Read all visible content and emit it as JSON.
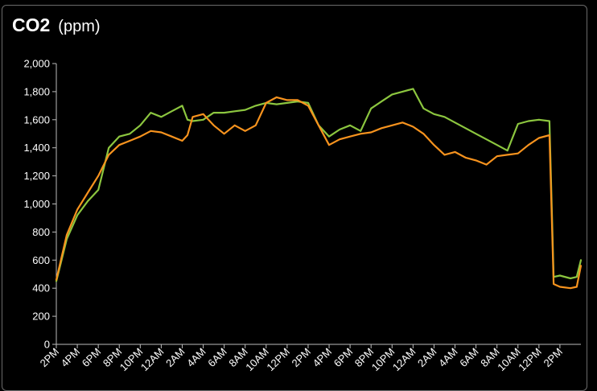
{
  "panel": {
    "title": "CO2",
    "unit": "(ppm)"
  },
  "chart_data": {
    "type": "line",
    "title": "CO2",
    "ylabel": "(ppm)",
    "xlabel": "",
    "ylim": [
      0,
      2000
    ],
    "xlim": [
      0,
      50
    ],
    "grid": false,
    "y_ticks": [
      0,
      200,
      400,
      600,
      800,
      1000,
      1200,
      1400,
      1600,
      1800,
      2000
    ],
    "y_tick_labels": [
      "0",
      "200",
      "400",
      "600",
      "800",
      "1,000",
      "1,200",
      "1,400",
      "1,600",
      "1,800",
      "2,000"
    ],
    "x_ticks": [
      0,
      2,
      4,
      6,
      8,
      10,
      12,
      14,
      16,
      18,
      20,
      22,
      24,
      26,
      28,
      30,
      32,
      34,
      36,
      38,
      40,
      42,
      44,
      46,
      48
    ],
    "x_tick_labels": [
      "2PM",
      "4PM",
      "6PM",
      "8PM",
      "10PM",
      "12AM",
      "2AM",
      "4AM",
      "6AM",
      "8AM",
      "10AM",
      "12PM",
      "2PM",
      "4PM",
      "6PM",
      "8PM",
      "10PM",
      "12AM",
      "2AM",
      "4AM",
      "6AM",
      "8AM",
      "10AM",
      "12PM",
      "2PM"
    ],
    "series": [
      {
        "color": "#8cc63f",
        "points": [
          [
            0,
            450
          ],
          [
            0.5,
            600
          ],
          [
            1,
            750
          ],
          [
            2,
            920
          ],
          [
            3,
            1020
          ],
          [
            4,
            1100
          ],
          [
            5,
            1400
          ],
          [
            6,
            1480
          ],
          [
            7,
            1500
          ],
          [
            8,
            1560
          ],
          [
            9,
            1650
          ],
          [
            10,
            1620
          ],
          [
            11,
            1660
          ],
          [
            12,
            1700
          ],
          [
            12.5,
            1600
          ],
          [
            13,
            1590
          ],
          [
            14,
            1600
          ],
          [
            15,
            1650
          ],
          [
            16,
            1650
          ],
          [
            17,
            1660
          ],
          [
            18,
            1670
          ],
          [
            19,
            1700
          ],
          [
            20,
            1720
          ],
          [
            21,
            1710
          ],
          [
            22,
            1720
          ],
          [
            23,
            1730
          ],
          [
            24,
            1720
          ],
          [
            25,
            1560
          ],
          [
            26,
            1480
          ],
          [
            27,
            1530
          ],
          [
            28,
            1560
          ],
          [
            29,
            1520
          ],
          [
            30,
            1680
          ],
          [
            31,
            1730
          ],
          [
            32,
            1780
          ],
          [
            33,
            1800
          ],
          [
            34,
            1820
          ],
          [
            35,
            1680
          ],
          [
            36,
            1640
          ],
          [
            37,
            1620
          ],
          [
            38,
            1580
          ],
          [
            39,
            1540
          ],
          [
            40,
            1500
          ],
          [
            41,
            1460
          ],
          [
            42,
            1420
          ],
          [
            43,
            1380
          ],
          [
            44,
            1570
          ],
          [
            45,
            1590
          ],
          [
            46,
            1600
          ],
          [
            47,
            1590
          ],
          [
            47.4,
            480
          ],
          [
            48,
            490
          ],
          [
            49,
            470
          ],
          [
            49.6,
            480
          ],
          [
            50,
            600
          ]
        ]
      },
      {
        "color": "#f7931e",
        "points": [
          [
            0,
            460
          ],
          [
            0.5,
            620
          ],
          [
            1,
            780
          ],
          [
            2,
            960
          ],
          [
            3,
            1080
          ],
          [
            4,
            1200
          ],
          [
            5,
            1350
          ],
          [
            6,
            1420
          ],
          [
            7,
            1450
          ],
          [
            8,
            1480
          ],
          [
            9,
            1520
          ],
          [
            10,
            1510
          ],
          [
            11,
            1480
          ],
          [
            12,
            1450
          ],
          [
            12.5,
            1490
          ],
          [
            13,
            1620
          ],
          [
            14,
            1640
          ],
          [
            15,
            1560
          ],
          [
            16,
            1500
          ],
          [
            17,
            1560
          ],
          [
            18,
            1520
          ],
          [
            19,
            1560
          ],
          [
            20,
            1720
          ],
          [
            21,
            1760
          ],
          [
            22,
            1740
          ],
          [
            23,
            1740
          ],
          [
            24,
            1700
          ],
          [
            25,
            1560
          ],
          [
            26,
            1420
          ],
          [
            27,
            1460
          ],
          [
            28,
            1480
          ],
          [
            29,
            1500
          ],
          [
            30,
            1510
          ],
          [
            31,
            1540
          ],
          [
            32,
            1560
          ],
          [
            33,
            1580
          ],
          [
            34,
            1550
          ],
          [
            35,
            1500
          ],
          [
            36,
            1420
          ],
          [
            37,
            1350
          ],
          [
            38,
            1370
          ],
          [
            39,
            1330
          ],
          [
            40,
            1310
          ],
          [
            41,
            1280
          ],
          [
            42,
            1340
          ],
          [
            43,
            1350
          ],
          [
            44,
            1360
          ],
          [
            45,
            1420
          ],
          [
            46,
            1470
          ],
          [
            47,
            1490
          ],
          [
            47.4,
            430
          ],
          [
            48,
            410
          ],
          [
            49,
            400
          ],
          [
            49.6,
            410
          ],
          [
            50,
            560
          ]
        ]
      }
    ]
  }
}
